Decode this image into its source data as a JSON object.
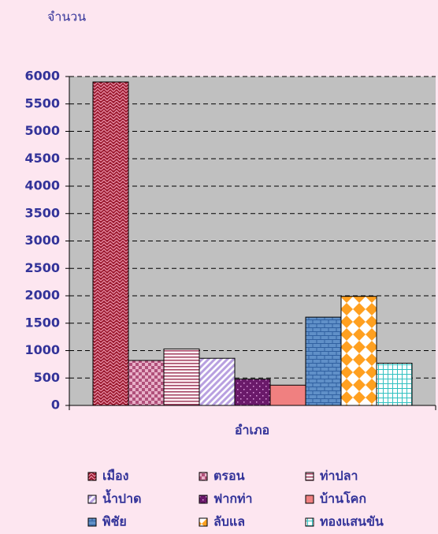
{
  "chart_data": {
    "type": "bar",
    "y_label": "จำนวน",
    "x_label": "อำเภอ",
    "categories": [
      null
    ],
    "series": [
      {
        "name": "เมือง",
        "color": "#9b1b30",
        "pattern": "zigzag",
        "values": [
          5900
        ]
      },
      {
        "name": "ตรอน",
        "color": "#b0507a",
        "pattern": "checker",
        "values": [
          820
        ]
      },
      {
        "name": "ท่าปลา",
        "color": "#a04060",
        "pattern": "hlines",
        "values": [
          1030
        ]
      },
      {
        "name": "น้ำปาด",
        "color": "#b8a0e0",
        "pattern": "diagonal",
        "values": [
          860
        ]
      },
      {
        "name": "ฟากท่า",
        "color": "#6a1a6a",
        "pattern": "dots",
        "values": [
          480
        ]
      },
      {
        "name": "บ้านโคก",
        "color": "#f08080",
        "pattern": "solid",
        "values": [
          370
        ]
      },
      {
        "name": "พิชัย",
        "color": "#6090c8",
        "pattern": "brick",
        "values": [
          1610
        ]
      },
      {
        "name": "ลับแล",
        "color": "#ffa020",
        "pattern": "diamond",
        "values": [
          1990
        ]
      },
      {
        "name": "ทองแสนขัน",
        "color": "#30c0c0",
        "pattern": "grid",
        "values": [
          770
        ]
      }
    ],
    "ylim": [
      0,
      6000
    ],
    "yticks": [
      0,
      500,
      1000,
      1500,
      2000,
      2500,
      3000,
      3500,
      4000,
      4500,
      5000,
      5500,
      6000
    ],
    "grid": true
  }
}
